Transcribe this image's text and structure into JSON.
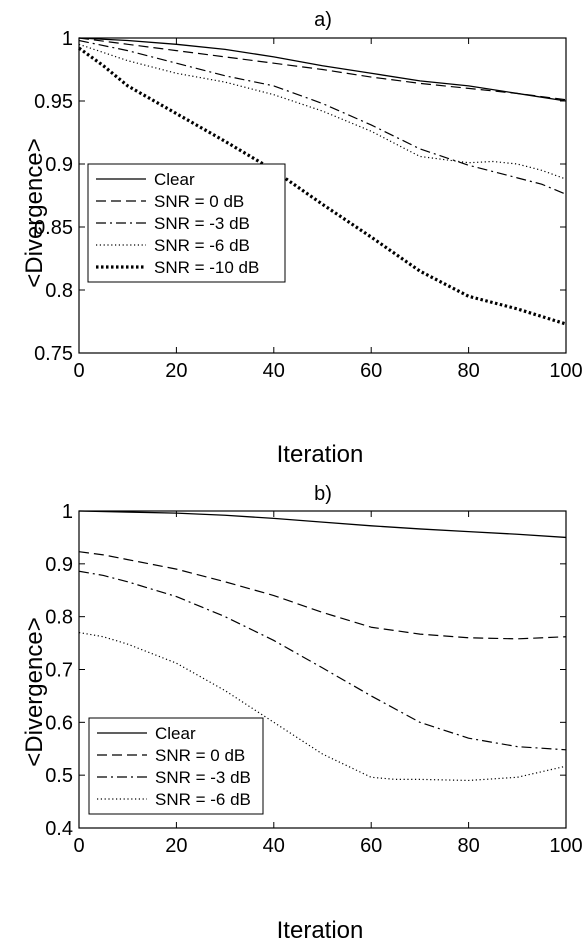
{
  "chart_data": [
    {
      "type": "line",
      "title": "a)",
      "xlabel": "Iteration",
      "ylabel": "<Divergence>",
      "xlim": [
        0,
        100
      ],
      "ylim": [
        0.75,
        1
      ],
      "xticks": [
        0,
        20,
        40,
        60,
        80,
        100
      ],
      "yticks": [
        0.75,
        0.8,
        0.85,
        0.9,
        0.95,
        1
      ],
      "ytick_labels": [
        "0.75",
        "0.8",
        "0.85",
        "0.9",
        "0.95",
        "1"
      ],
      "xtick_labels": [
        "0",
        "20",
        "40",
        "60",
        "80",
        "100"
      ],
      "grid": false,
      "legend_position": "middle-left",
      "series": [
        {
          "name": "Clear",
          "style": "solid",
          "x": [
            0,
            10,
            20,
            30,
            40,
            50,
            60,
            70,
            80,
            90,
            100
          ],
          "y": [
            1.0,
            0.998,
            0.995,
            0.991,
            0.985,
            0.978,
            0.972,
            0.966,
            0.962,
            0.956,
            0.95
          ]
        },
        {
          "name": "SNR = 0 dB",
          "style": "dashed",
          "x": [
            0,
            10,
            20,
            30,
            40,
            50,
            60,
            70,
            80,
            90,
            100
          ],
          "y": [
            1.0,
            0.995,
            0.99,
            0.985,
            0.98,
            0.975,
            0.969,
            0.964,
            0.96,
            0.956,
            0.951
          ]
        },
        {
          "name": "SNR = -3 dB",
          "style": "dashdot",
          "x": [
            0,
            10,
            20,
            30,
            40,
            50,
            60,
            70,
            80,
            85,
            90,
            95,
            100
          ],
          "y": [
            0.998,
            0.99,
            0.98,
            0.97,
            0.962,
            0.948,
            0.931,
            0.912,
            0.899,
            0.894,
            0.889,
            0.884,
            0.876
          ]
        },
        {
          "name": "SNR = -6 dB",
          "style": "dotted",
          "x": [
            0,
            10,
            20,
            30,
            40,
            50,
            60,
            70,
            80,
            85,
            90,
            95,
            100
          ],
          "y": [
            0.995,
            0.982,
            0.972,
            0.965,
            0.955,
            0.942,
            0.926,
            0.906,
            0.901,
            0.902,
            0.9,
            0.895,
            0.888
          ]
        },
        {
          "name": "SNR = -10 dB",
          "style": "thick-dotted",
          "x": [
            0,
            5,
            10,
            20,
            30,
            40,
            50,
            60,
            70,
            80,
            90,
            100
          ],
          "y": [
            0.992,
            0.978,
            0.962,
            0.94,
            0.918,
            0.895,
            0.868,
            0.842,
            0.815,
            0.795,
            0.785,
            0.773
          ]
        }
      ]
    },
    {
      "type": "line",
      "title": "b)",
      "xlabel": "Iteration",
      "ylabel": "<Divergence>",
      "xlim": [
        0,
        100
      ],
      "ylim": [
        0.4,
        1
      ],
      "xticks": [
        0,
        20,
        40,
        60,
        80,
        100
      ],
      "yticks": [
        0.4,
        0.5,
        0.6,
        0.7,
        0.8,
        0.9,
        1
      ],
      "ytick_labels": [
        "0.4",
        "0.5",
        "0.6",
        "0.7",
        "0.8",
        "0.9",
        "1"
      ],
      "xtick_labels": [
        "0",
        "20",
        "40",
        "60",
        "80",
        "100"
      ],
      "grid": false,
      "legend_position": "bottom-left",
      "series": [
        {
          "name": "Clear",
          "style": "solid",
          "x": [
            0,
            10,
            20,
            30,
            40,
            50,
            60,
            70,
            80,
            90,
            100
          ],
          "y": [
            1.0,
            0.998,
            0.996,
            0.992,
            0.986,
            0.979,
            0.972,
            0.966,
            0.961,
            0.956,
            0.95
          ]
        },
        {
          "name": "SNR = 0 dB",
          "style": "dashed",
          "x": [
            0,
            5,
            10,
            20,
            30,
            40,
            50,
            60,
            70,
            80,
            90,
            100
          ],
          "y": [
            0.923,
            0.917,
            0.908,
            0.89,
            0.866,
            0.84,
            0.808,
            0.78,
            0.767,
            0.76,
            0.758,
            0.762
          ]
        },
        {
          "name": "SNR = -3 dB",
          "style": "dashdot",
          "x": [
            0,
            5,
            10,
            20,
            30,
            40,
            50,
            60,
            70,
            80,
            90,
            100
          ],
          "y": [
            0.886,
            0.878,
            0.866,
            0.838,
            0.8,
            0.755,
            0.703,
            0.65,
            0.6,
            0.57,
            0.554,
            0.548
          ]
        },
        {
          "name": "SNR = -6 dB",
          "style": "dotted",
          "x": [
            0,
            5,
            10,
            20,
            30,
            40,
            50,
            60,
            65,
            70,
            80,
            90,
            100
          ],
          "y": [
            0.77,
            0.762,
            0.748,
            0.712,
            0.66,
            0.6,
            0.54,
            0.496,
            0.492,
            0.492,
            0.49,
            0.496,
            0.517
          ]
        }
      ]
    }
  ]
}
